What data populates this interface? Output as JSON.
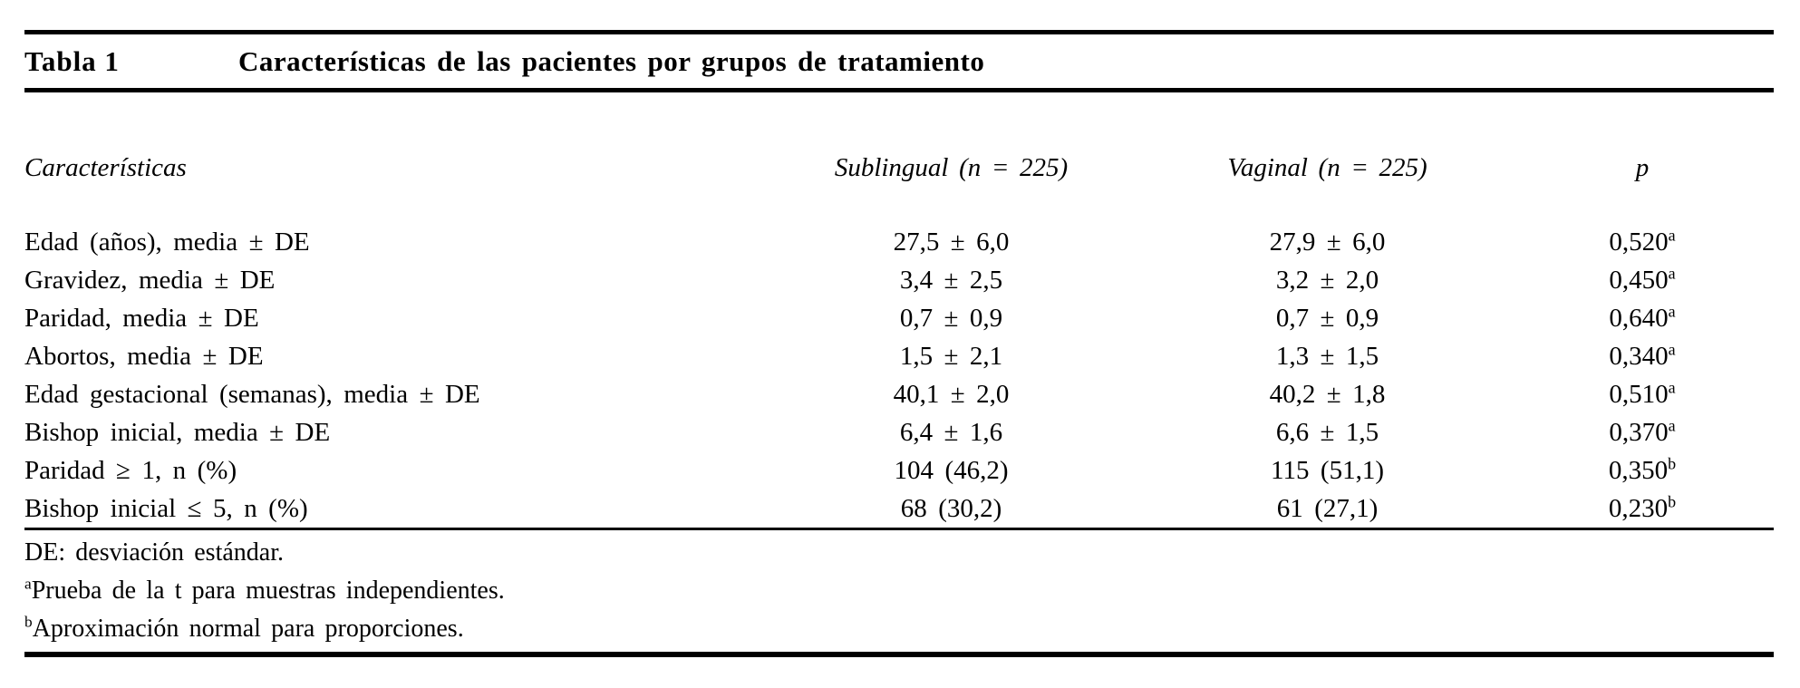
{
  "page": {
    "background_color": "#ffffff",
    "text_color": "#000000",
    "rule_color": "#000000"
  },
  "table": {
    "label": "Tabla 1",
    "title": "Características de las pacientes por grupos de tratamiento",
    "columns": [
      {
        "label": "Características"
      },
      {
        "label": "Sublingual (n = 225)"
      },
      {
        "label": "Vaginal (n = 225)"
      },
      {
        "label": "p"
      }
    ],
    "rows": [
      {
        "label": "Edad (años), media ± DE",
        "sublingual": "27,5 ± 6,0",
        "vaginal": "27,9 ± 6,0",
        "p": "0,520",
        "p_sup": "a"
      },
      {
        "label": "Gravidez, media ± DE",
        "sublingual": "3,4 ± 2,5",
        "vaginal": "3,2 ± 2,0",
        "p": "0,450",
        "p_sup": "a"
      },
      {
        "label": "Paridad, media ± DE",
        "sublingual": "0,7 ± 0,9",
        "vaginal": "0,7 ± 0,9",
        "p": "0,640",
        "p_sup": "a"
      },
      {
        "label": "Abortos, media ± DE",
        "sublingual": "1,5 ± 2,1",
        "vaginal": "1,3 ± 1,5",
        "p": "0,340",
        "p_sup": "a"
      },
      {
        "label": "Edad gestacional (semanas), media ± DE",
        "sublingual": "40,1 ± 2,0",
        "vaginal": "40,2 ± 1,8",
        "p": "0,510",
        "p_sup": "a"
      },
      {
        "label": "Bishop inicial, media ± DE",
        "sublingual": "6,4 ± 1,6",
        "vaginal": "6,6 ± 1,5",
        "p": "0,370",
        "p_sup": "a"
      },
      {
        "label": "Paridad ≥ 1, n (%)",
        "sublingual": "104 (46,2)",
        "vaginal": "115 (51,1)",
        "p": "0,350",
        "p_sup": "b"
      },
      {
        "label": "Bishop inicial ≤ 5, n (%)",
        "sublingual": "68 (30,2)",
        "vaginal": "61 (27,1)",
        "p": "0,230",
        "p_sup": "b"
      }
    ],
    "footnotes": [
      {
        "sup": "",
        "text": "DE: desviación estándar."
      },
      {
        "sup": "a",
        "text": "Prueba de la t para muestras independientes."
      },
      {
        "sup": "b",
        "text": "Aproximación normal para proporciones."
      }
    ]
  }
}
